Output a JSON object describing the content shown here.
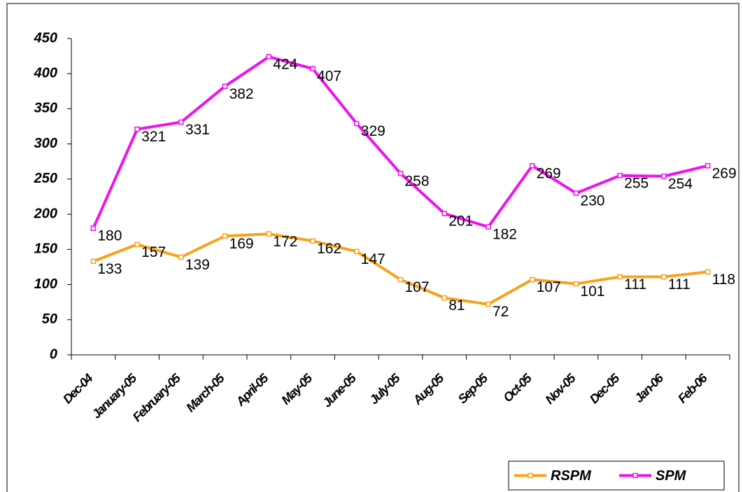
{
  "chart_data": {
    "type": "line",
    "categories": [
      "Dec-04",
      "January-05",
      "February-05",
      "March-05",
      "April-05",
      "May-05",
      "June-05",
      "July-05",
      "Aug-05",
      "Sep-05",
      "Oct-05",
      "Nov-05",
      "Dec-05",
      "Jan-06",
      "Feb-06"
    ],
    "series": [
      {
        "name": "RSPM",
        "color": "#f7a21b",
        "values": [
          133,
          157,
          139,
          169,
          172,
          162,
          147,
          107,
          81,
          72,
          107,
          101,
          111,
          111,
          118
        ]
      },
      {
        "name": "SPM",
        "color": "#ee11ee",
        "values": [
          180,
          321,
          331,
          382,
          424,
          407,
          329,
          258,
          201,
          182,
          269,
          230,
          255,
          254,
          269
        ]
      }
    ],
    "ylim": [
      0,
      450
    ],
    "yticks": [
      0,
      50,
      100,
      150,
      200,
      250,
      300,
      350,
      400,
      450
    ],
    "legend": "bottom-right"
  }
}
